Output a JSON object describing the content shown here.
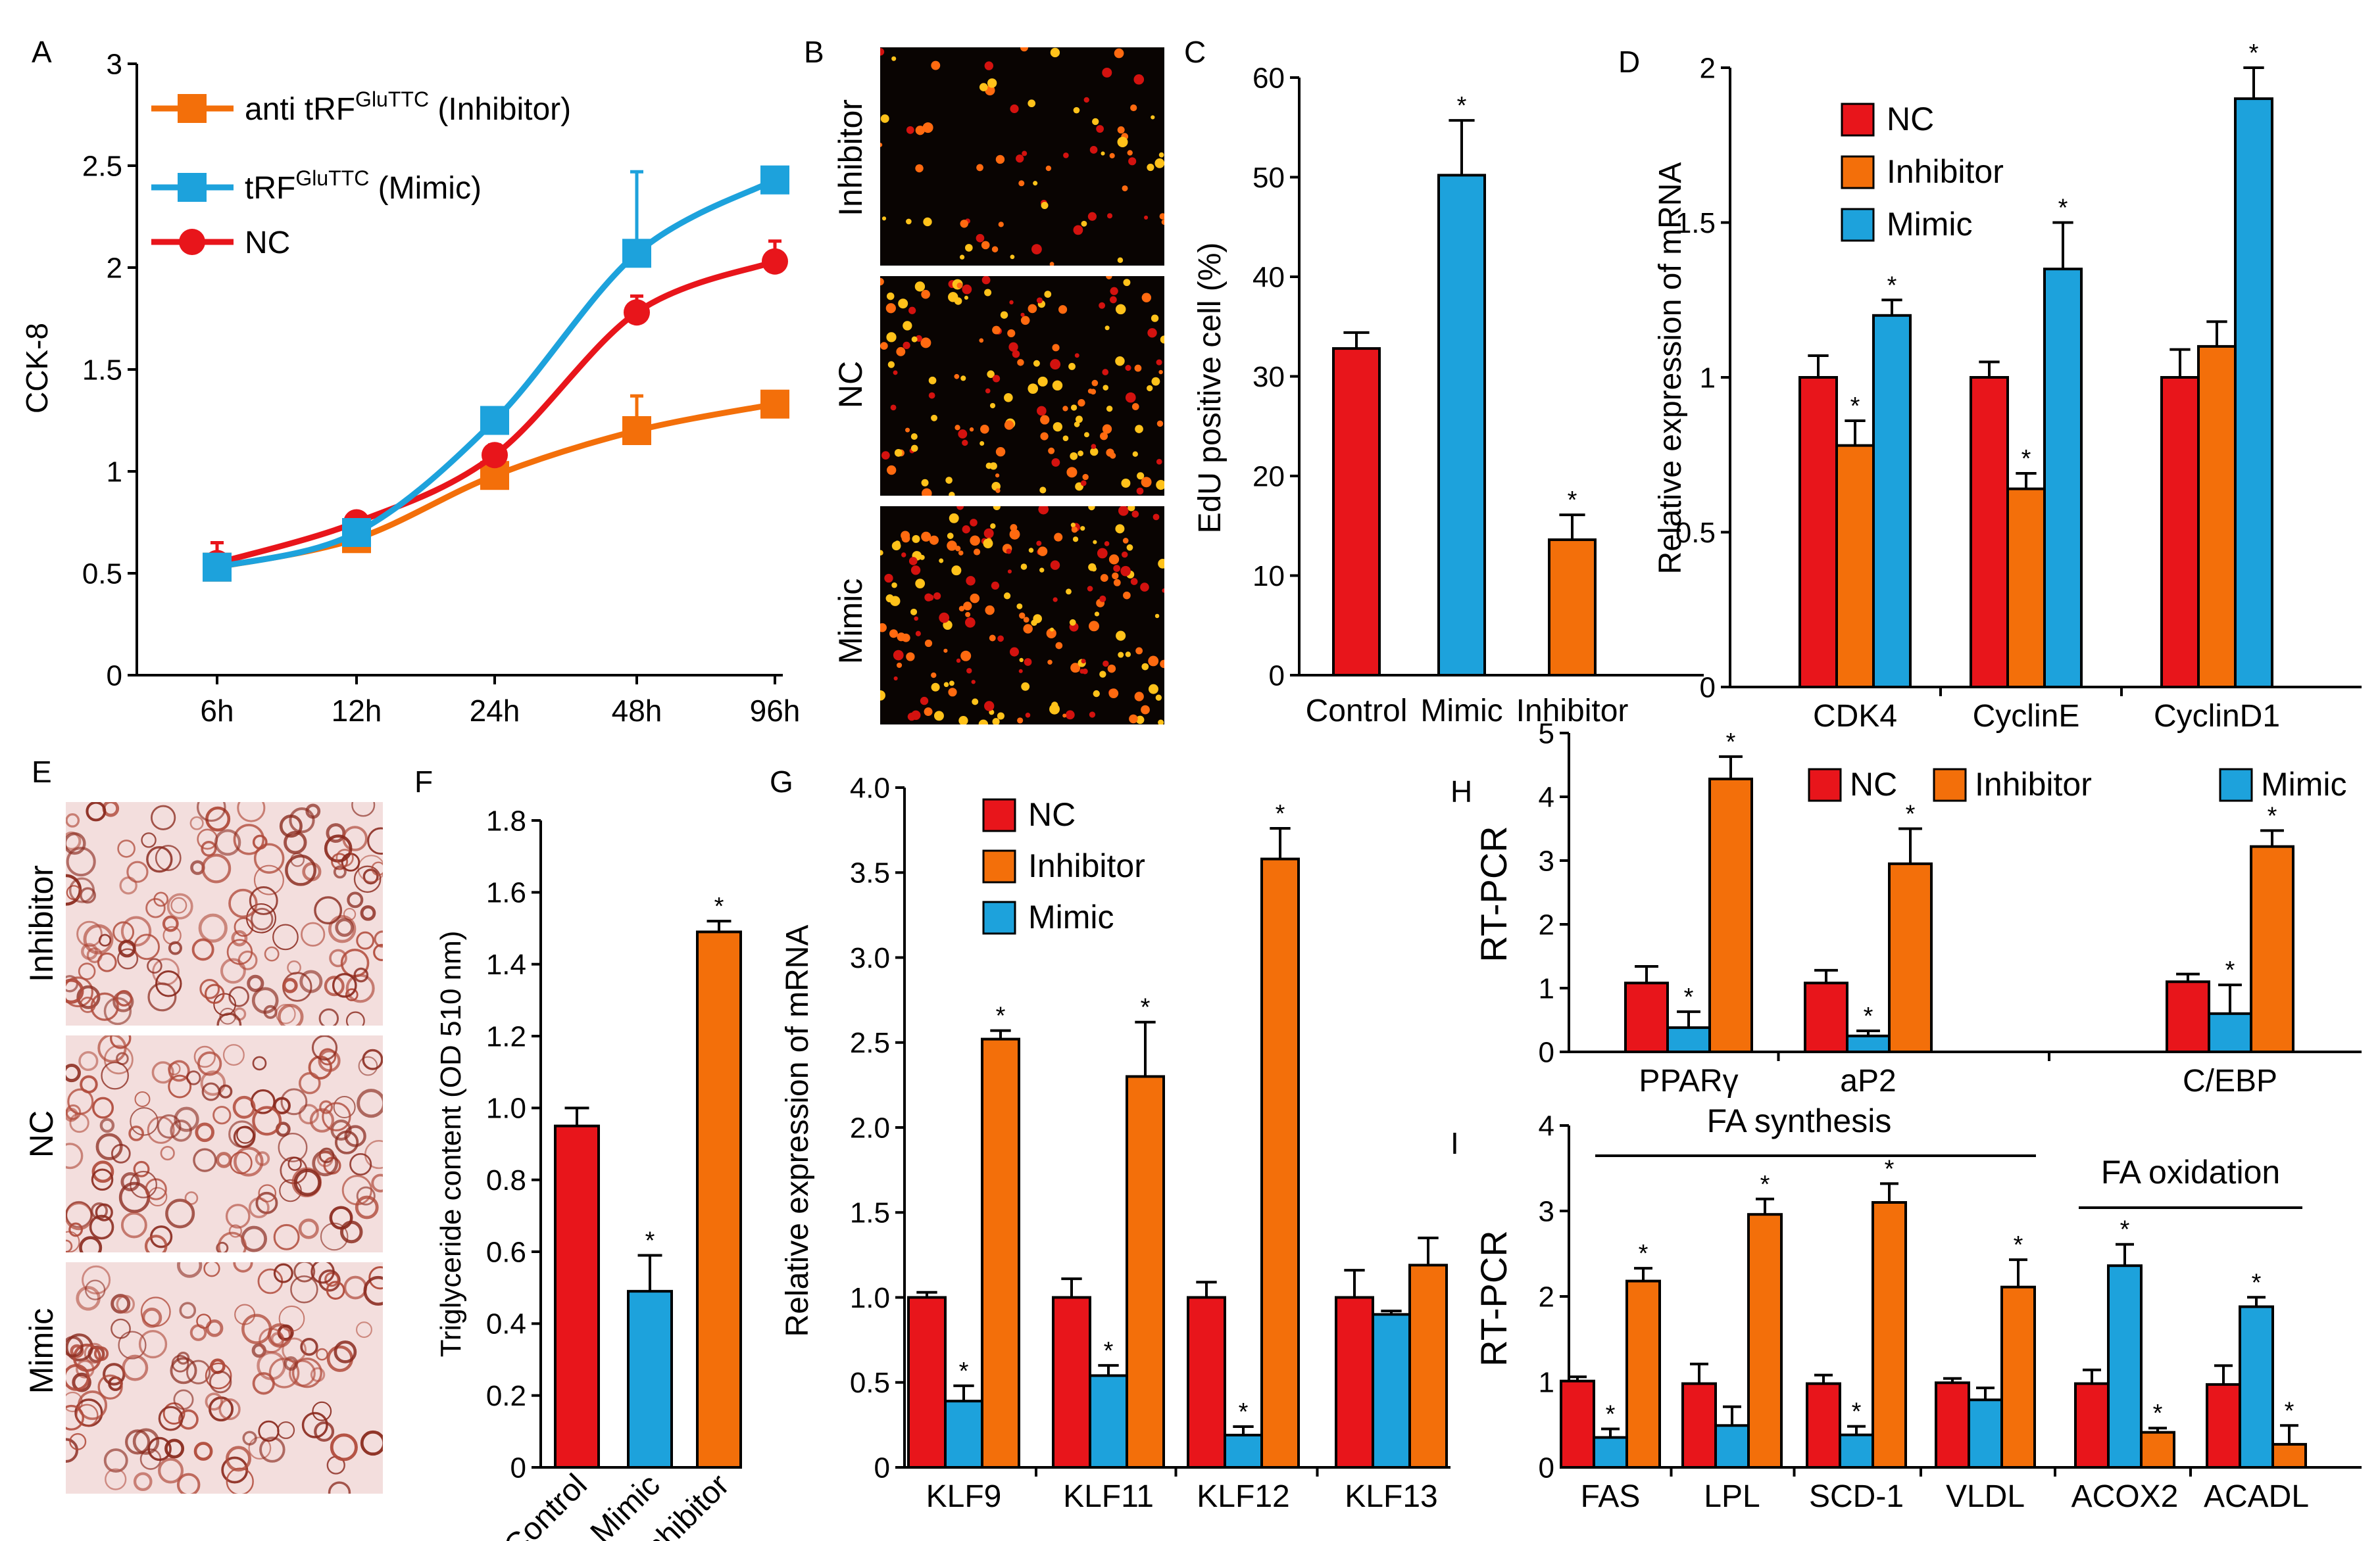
{
  "colors": {
    "red": "#e8151b",
    "orange": "#f36f0a",
    "blue": "#1da2dc",
    "black": "#000000",
    "fluor_bg": "#090402",
    "oil_bg": "#f3dedd"
  },
  "panel_letters": [
    "A",
    "B",
    "C",
    "D",
    "E",
    "F",
    "G",
    "H",
    "I"
  ],
  "image_panels": {
    "B": {
      "rows": [
        "Inhibitor",
        "NC",
        "Mimic"
      ]
    },
    "E": {
      "rows": [
        "Inhibitor",
        "NC",
        "Mimic"
      ]
    }
  },
  "chart_data": [
    {
      "id": "A",
      "type": "line",
      "ylabel": "CCK-8",
      "categories": [
        "6h",
        "12h",
        "24h",
        "48h",
        "96h"
      ],
      "ylim": [
        0,
        3
      ],
      "yticks": [
        "0",
        "0.5",
        "1",
        "1.5",
        "2",
        "2.5",
        "3"
      ],
      "series": [
        {
          "name": "anti tRF",
          "sup": "GluTTC",
          "suffix": " (Inhibitor)",
          "color": "#f36f0a",
          "marker": "square",
          "values": [
            0.53,
            0.67,
            0.98,
            1.2,
            1.33
          ],
          "errors": [
            0.05,
            0.04,
            0.05,
            0.17,
            0.05
          ]
        },
        {
          "name": "tRF",
          "sup": "GluTTC",
          "suffix": " (Mimic)",
          "color": "#1da2dc",
          "marker": "square",
          "values": [
            0.53,
            0.7,
            1.25,
            2.07,
            2.43
          ],
          "errors": [
            0.04,
            0.05,
            0.05,
            0.4,
            0.03
          ]
        },
        {
          "name": "NC",
          "sup": "",
          "suffix": "",
          "color": "#e8151b",
          "marker": "circle",
          "values": [
            0.55,
            0.75,
            1.08,
            1.78,
            2.03
          ],
          "errors": [
            0.1,
            0.04,
            0.05,
            0.08,
            0.1
          ]
        }
      ]
    },
    {
      "id": "C",
      "type": "bar",
      "ylabel": "EdU positive cell (%)",
      "categories": [
        "Control",
        "Mimic",
        "Inhibitor"
      ],
      "ylim": [
        0,
        60
      ],
      "yticks": [
        "0",
        "10",
        "20",
        "30",
        "40",
        "50",
        "60"
      ],
      "series": [
        {
          "name": "EdU",
          "colors": [
            "#e8151b",
            "#1da2dc",
            "#f36f0a"
          ],
          "values": [
            32.8,
            50.2,
            13.6
          ],
          "errors": [
            1.6,
            5.5,
            2.5
          ],
          "stars": [
            "",
            "*",
            "*"
          ]
        }
      ]
    },
    {
      "id": "D",
      "type": "bar",
      "ylabel": "Relative expression of mRNA",
      "categories": [
        "CDK4",
        "CyclinE",
        "CyclinD1"
      ],
      "ylim": [
        0,
        2
      ],
      "yticks": [
        "0",
        "0.5",
        "1",
        "1.5",
        "2"
      ],
      "legend": [
        "NC",
        "Inhibitor",
        "Mimic"
      ],
      "series": [
        {
          "name": "NC",
          "color": "#e8151b",
          "values": [
            1.0,
            1.0,
            1.0
          ],
          "errors": [
            0.07,
            0.05,
            0.09
          ],
          "stars": [
            "",
            "",
            ""
          ]
        },
        {
          "name": "Inhibitor",
          "color": "#f36f0a",
          "values": [
            0.78,
            0.64,
            1.1
          ],
          "errors": [
            0.08,
            0.05,
            0.08
          ],
          "stars": [
            "*",
            "*",
            ""
          ]
        },
        {
          "name": "Mimic",
          "color": "#1da2dc",
          "values": [
            1.2,
            1.35,
            1.9
          ],
          "errors": [
            0.05,
            0.15,
            0.1
          ],
          "stars": [
            "*",
            "*",
            "*"
          ]
        }
      ]
    },
    {
      "id": "F",
      "type": "bar",
      "ylabel": "Triglyceride content (OD 510 nm)",
      "categories": [
        "Control",
        "Mimic",
        "Inhibitor"
      ],
      "ylim": [
        0,
        1.8
      ],
      "yticks": [
        "0",
        "0.2",
        "0.4",
        "0.6",
        "0.8",
        "1.0",
        "1.2",
        "1.4",
        "1.6",
        "1.8"
      ],
      "series": [
        {
          "name": "TG",
          "colors": [
            "#e8151b",
            "#1da2dc",
            "#f36f0a"
          ],
          "values": [
            0.95,
            0.49,
            1.49
          ],
          "errors": [
            0.05,
            0.1,
            0.03
          ],
          "stars": [
            "",
            "*",
            "*"
          ]
        }
      ]
    },
    {
      "id": "G",
      "type": "bar",
      "ylabel": "Relative expression of mRNA",
      "categories": [
        "KLF9",
        "KLF11",
        "KLF12",
        "KLF13"
      ],
      "ylim": [
        0,
        4
      ],
      "yticks": [
        "0",
        "0.5",
        "1.0",
        "1.5",
        "2.0",
        "2.5",
        "3.0",
        "3.5",
        "4.0"
      ],
      "legend": [
        "NC",
        "Inhibitor",
        "Mimic"
      ],
      "series": [
        {
          "name": "NC",
          "color": "#e8151b",
          "values": [
            1.0,
            1.0,
            1.0,
            1.0
          ],
          "errors": [
            0.03,
            0.11,
            0.09,
            0.16
          ],
          "stars": [
            "",
            "",
            "",
            ""
          ]
        },
        {
          "name": "Mimic",
          "color": "#1da2dc",
          "values": [
            0.39,
            0.54,
            0.19,
            0.9
          ],
          "errors": [
            0.09,
            0.06,
            0.05,
            0.02
          ],
          "stars": [
            "*",
            "*",
            "*",
            ""
          ]
        },
        {
          "name": "Inhibitor",
          "color": "#f36f0a",
          "values": [
            2.52,
            2.3,
            3.58,
            1.19
          ],
          "errors": [
            0.05,
            0.32,
            0.18,
            0.16
          ],
          "stars": [
            "*",
            "*",
            "*",
            ""
          ]
        }
      ]
    },
    {
      "id": "H",
      "type": "bar",
      "ylabel": "RT-PCR",
      "categories": [
        "PPARγ",
        "aP2",
        "C/EBP"
      ],
      "ylim": [
        0,
        5
      ],
      "yticks": [
        "0",
        "1",
        "2",
        "3",
        "4",
        "5"
      ],
      "legend": [
        "NC",
        "Inhibitor",
        "Mimic"
      ],
      "series": [
        {
          "name": "NC",
          "color": "#e8151b",
          "values": [
            1.08,
            1.08,
            1.1
          ],
          "errors": [
            0.26,
            0.2,
            0.12
          ],
          "stars": [
            "",
            "",
            ""
          ]
        },
        {
          "name": "Mimic",
          "color": "#1da2dc",
          "values": [
            0.38,
            0.25,
            0.6
          ],
          "errors": [
            0.25,
            0.08,
            0.45
          ],
          "stars": [
            "*",
            "*",
            "*"
          ]
        },
        {
          "name": "Inhibitor",
          "color": "#f36f0a",
          "values": [
            4.28,
            2.95,
            3.22
          ],
          "errors": [
            0.35,
            0.55,
            0.25
          ],
          "stars": [
            "*",
            "*",
            "*"
          ]
        }
      ]
    },
    {
      "id": "I",
      "type": "bar",
      "ylabel": "RT-PCR",
      "categories": [
        "FAS",
        "LPL",
        "SCD-1",
        "VLDL",
        "ACOX2",
        "ACADL"
      ],
      "ylim": [
        0,
        4
      ],
      "yticks": [
        "0",
        "1",
        "2",
        "3",
        "4"
      ],
      "brackets": [
        {
          "label": "FA synthesis",
          "from": 0,
          "to": 3
        },
        {
          "label": "FA oxidation",
          "from": 4,
          "to": 5
        }
      ],
      "series": [
        {
          "name": "NC",
          "color": "#e8151b",
          "values": [
            1.01,
            0.98,
            0.98,
            0.99,
            0.98,
            0.97
          ],
          "errors": [
            0.05,
            0.23,
            0.1,
            0.05,
            0.16,
            0.22
          ],
          "stars": [
            "",
            "",
            "",
            "",
            "",
            ""
          ]
        },
        {
          "name": "Mimic",
          "color": "#1da2dc",
          "values": [
            0.35,
            0.49,
            0.38,
            0.79,
            2.36,
            1.88
          ],
          "errors": [
            0.1,
            0.22,
            0.1,
            0.14,
            0.25,
            0.11
          ],
          "stars": [
            "*",
            "",
            "*",
            "",
            "*",
            "*"
          ]
        },
        {
          "name": "Inhibitor",
          "color": "#f36f0a",
          "values": [
            2.18,
            2.96,
            3.1,
            2.11,
            0.41,
            0.27
          ],
          "errors": [
            0.15,
            0.18,
            0.22,
            0.32,
            0.05,
            0.22
          ],
          "stars": [
            "*",
            "*",
            "*",
            "*",
            "*",
            "*"
          ]
        }
      ]
    }
  ]
}
